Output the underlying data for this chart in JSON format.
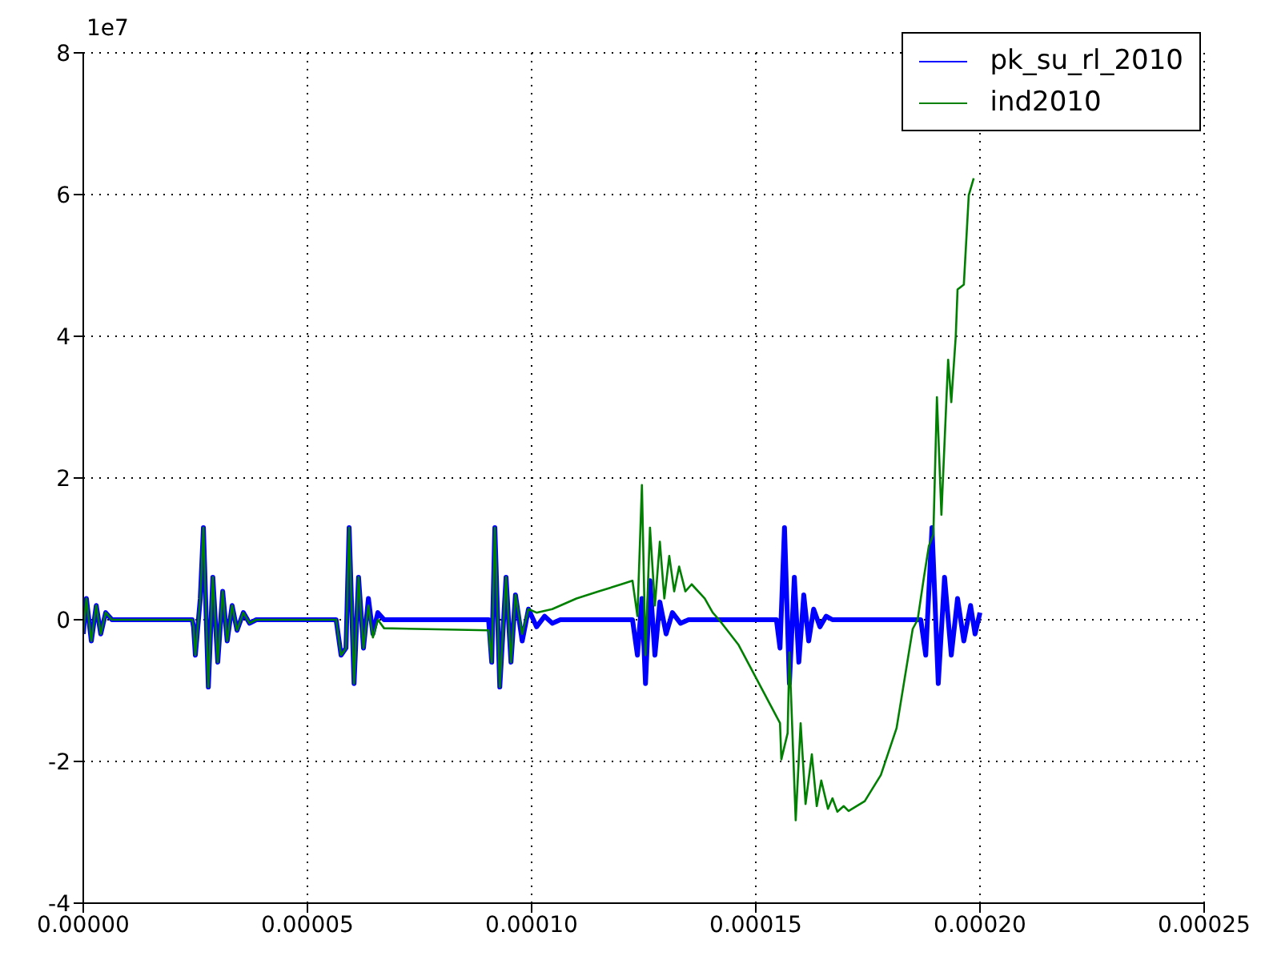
{
  "chart_data": {
    "type": "line",
    "annotations": [
      "1e7"
    ],
    "xlim": [
      0,
      0.00025
    ],
    "xticks": [
      {
        "value": 0,
        "label": "0.00000"
      },
      {
        "value": 5e-05,
        "label": "0.00005"
      },
      {
        "value": 0.0001,
        "label": "0.00010"
      },
      {
        "value": 0.00015,
        "label": "0.00015"
      },
      {
        "value": 0.0002,
        "label": "0.00020"
      },
      {
        "value": 0.00025,
        "label": "0.00025"
      }
    ],
    "ylim": [
      -4,
      8
    ],
    "yticks": [
      -4,
      -2,
      0,
      2,
      4,
      6,
      8
    ],
    "grid": true,
    "legend": "top right",
    "marker": "none",
    "line_style": "solid",
    "series": [
      {
        "name": "pk_su_rl_2010",
        "color": "#0000ff",
        "x": [
          0,
          7e-07,
          1.8e-06,
          2.9e-06,
          3.9e-06,
          5e-06,
          6.4e-06,
          2.43e-05,
          2.46e-05,
          2.5e-05,
          2.61e-05,
          2.68e-05,
          2.79e-05,
          2.89e-05,
          3e-05,
          3.11e-05,
          3.21e-05,
          3.32e-05,
          3.43e-05,
          3.57e-05,
          3.71e-05,
          3.86e-05,
          5.64e-05,
          5.75e-05,
          5.86e-05,
          5.93e-05,
          6.04e-05,
          6.14e-05,
          6.25e-05,
          6.36e-05,
          6.46e-05,
          6.57e-05,
          6.71e-05,
          9.04e-05,
          9.11e-05,
          9.18e-05,
          9.29e-05,
          9.43e-05,
          9.54e-05,
          9.64e-05,
          9.79e-05,
          9.93e-05,
          0.0001011,
          0.0001029,
          0.0001046,
          0.0001064,
          0.0001225,
          0.0001236,
          0.0001246,
          0.0001254,
          0.0001264,
          0.0001275,
          0.0001286,
          0.00013,
          0.0001314,
          0.0001332,
          0.000135,
          0.0001546,
          0.0001554,
          0.0001564,
          0.0001575,
          0.0001586,
          0.0001596,
          0.0001607,
          0.0001618,
          0.0001629,
          0.0001643,
          0.0001657,
          0.0001671,
          0.0001868,
          0.0001879,
          0.0001893,
          0.0001907,
          0.0001921,
          0.0001936,
          0.000195,
          0.0001964,
          0.0001979,
          0.0001989,
          0.0002
        ],
        "values": [
          -0.2,
          0.3,
          -0.3,
          0.2,
          -0.2,
          0.1,
          0,
          0,
          -0.1,
          -0.5,
          0.3,
          1.3,
          -0.95,
          0.6,
          -0.6,
          0.4,
          -0.3,
          0.2,
          -0.15,
          0.1,
          -0.05,
          0,
          0,
          -0.5,
          -0.4,
          1.3,
          -0.9,
          0.6,
          -0.4,
          0.3,
          -0.2,
          0.1,
          0,
          0,
          -0.6,
          1.3,
          -0.95,
          0.6,
          -0.6,
          0.35,
          -0.3,
          0.15,
          -0.1,
          0.05,
          -0.05,
          0,
          0,
          -0.5,
          0.3,
          -0.9,
          0.55,
          -0.5,
          0.25,
          -0.2,
          0.1,
          -0.05,
          0,
          0,
          -0.4,
          1.3,
          -0.9,
          0.6,
          -0.6,
          0.35,
          -0.3,
          0.15,
          -0.1,
          0.05,
          0,
          0,
          -0.5,
          1.3,
          -0.9,
          0.6,
          -0.5,
          0.3,
          -0.3,
          0.2,
          -0.2,
          0.1
        ]
      },
      {
        "name": "ind2010",
        "color": "#008000",
        "x": [
          0,
          7e-07,
          1.8e-06,
          2.9e-06,
          3.9e-06,
          5e-06,
          6.4e-06,
          2.43e-05,
          2.46e-05,
          2.5e-05,
          2.61e-05,
          2.68e-05,
          2.79e-05,
          2.89e-05,
          3e-05,
          3.11e-05,
          3.21e-05,
          3.32e-05,
          3.43e-05,
          3.57e-05,
          3.71e-05,
          3.86e-05,
          5.64e-05,
          5.75e-05,
          5.86e-05,
          5.93e-05,
          6.04e-05,
          6.14e-05,
          6.25e-05,
          6.36e-05,
          6.46e-05,
          6.57e-05,
          6.71e-05,
          9.04e-05,
          9.11e-05,
          9.18e-05,
          9.29e-05,
          9.43e-05,
          9.54e-05,
          9.64e-05,
          9.79e-05,
          9.93e-05,
          0.0001011,
          0.0001046,
          0.00011,
          0.000115,
          0.00012,
          0.0001225,
          0.0001236,
          0.0001246,
          0.0001254,
          0.0001264,
          0.0001275,
          0.0001286,
          0.0001296,
          0.0001307,
          0.0001318,
          0.0001329,
          0.0001343,
          0.0001357,
          0.0001386,
          0.0001404,
          0.0001418,
          0.0001461,
          0.0001554,
          0.0001557,
          0.0001571,
          0.0001575,
          0.0001589,
          0.00016,
          0.0001611,
          0.0001625,
          0.0001636,
          0.0001646,
          0.0001661,
          0.0001671,
          0.0001682,
          0.0001696,
          0.0001707,
          0.0001743,
          0.0001779,
          0.0001814,
          0.000185,
          0.0001861,
          0.0001875,
          0.0001886,
          0.0001896,
          0.0001904,
          0.0001914,
          0.0001929,
          0.0001936,
          0.0001946,
          0.000195,
          0.0001964,
          0.0001975,
          0.0001986
        ],
        "values": [
          -0.2,
          0.3,
          -0.3,
          0.2,
          -0.2,
          0.1,
          0,
          0,
          -0.1,
          -0.5,
          0.3,
          1.3,
          -0.95,
          0.6,
          -0.6,
          0.4,
          -0.3,
          0.2,
          -0.15,
          0.1,
          -0.05,
          0,
          0,
          -0.5,
          -0.4,
          1.3,
          -0.9,
          0.6,
          -0.4,
          0.2,
          -0.25,
          0,
          -0.12,
          -0.15,
          -0.6,
          1.3,
          -0.95,
          0.6,
          -0.6,
          0.35,
          -0.2,
          0.15,
          0.1,
          0.15,
          0.3,
          0.4,
          0.5,
          0.55,
          0.05,
          1.9,
          -0.5,
          1.3,
          0.2,
          1.1,
          0.3,
          0.9,
          0.4,
          0.75,
          0.4,
          0.5,
          0.3,
          0.1,
          0,
          -0.35,
          -1.46,
          -1.97,
          -1.6,
          -0.46,
          -2.83,
          -1.46,
          -2.6,
          -1.9,
          -2.63,
          -2.27,
          -2.67,
          -2.52,
          -2.71,
          -2.63,
          -2.7,
          -2.56,
          -2.19,
          -1.53,
          -0.13,
          0,
          0.6,
          1.04,
          1.2,
          3.14,
          1.48,
          3.67,
          3.07,
          4.0,
          4.66,
          4.73,
          5.99,
          6.23
        ]
      }
    ]
  }
}
